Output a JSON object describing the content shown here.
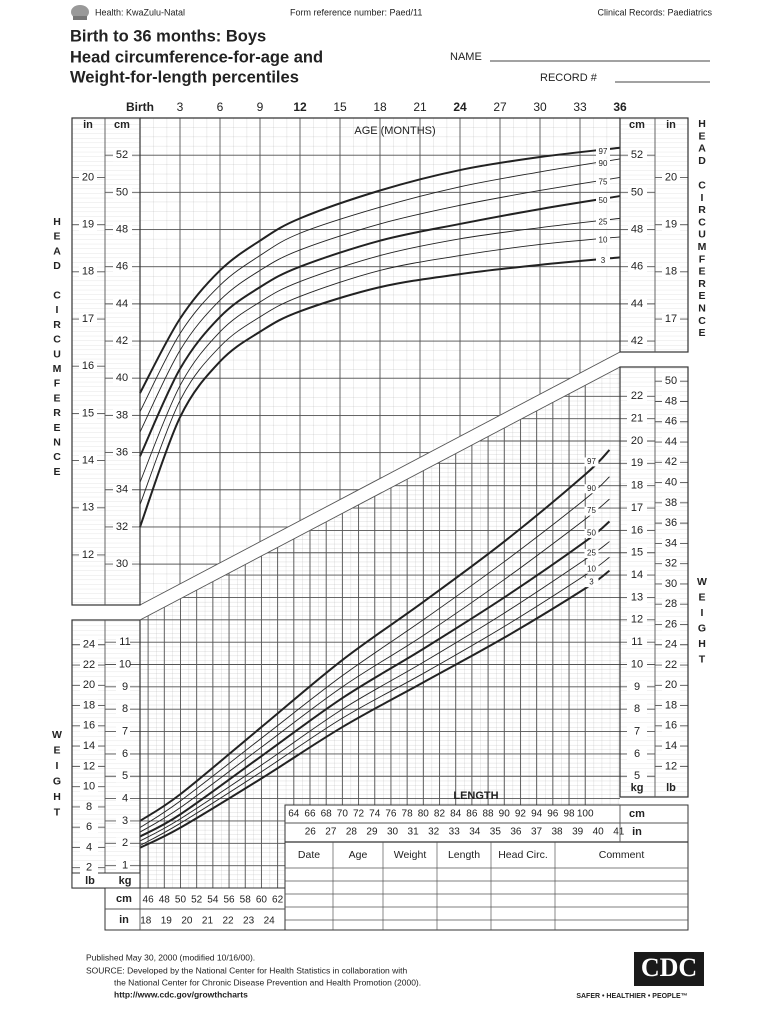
{
  "header": {
    "org": "Health: KwaZulu-Natal",
    "form_ref": "Form reference number: Paed/11",
    "records": "Clinical Records: Paediatrics",
    "title_lines": [
      "Birth to 36 months: Boys",
      "Head circumference-for-age and",
      "Weight-for-length percentiles"
    ],
    "name_label": "NAME",
    "record_label": "RECORD #"
  },
  "chart_data": [
    {
      "type": "line",
      "xlabel": "AGE (MONTHS)",
      "ylabel": "HEAD CIRCUMFERENCE",
      "yunit": "cm",
      "y2unit": "in",
      "x": [
        0,
        3,
        6,
        9,
        12,
        18,
        24,
        30,
        36
      ],
      "xlim": [
        0,
        36
      ],
      "xticks": [
        {
          "value": 0,
          "label": "Birth"
        },
        3,
        6,
        9,
        12,
        15,
        18,
        21,
        24,
        27,
        30,
        33,
        36
      ],
      "ylim": [
        27.8,
        54
      ],
      "yticks": [
        30,
        32,
        34,
        36,
        38,
        40,
        42,
        44,
        46,
        48,
        50,
        52
      ],
      "y2lim": [
        10.94,
        21.26
      ],
      "y2ticks": [
        12,
        13,
        14,
        15,
        16,
        17,
        18,
        19,
        20
      ],
      "grid": true,
      "series": [
        {
          "name": "3",
          "color": "#222",
          "values": [
            32.0,
            37.9,
            40.9,
            42.5,
            43.6,
            44.9,
            45.6,
            46.1,
            46.5
          ]
        },
        {
          "name": "10",
          "color": "#222",
          "values": [
            33.2,
            38.8,
            41.7,
            43.3,
            44.4,
            45.8,
            46.6,
            47.2,
            47.6
          ]
        },
        {
          "name": "25",
          "color": "#222",
          "values": [
            34.4,
            39.6,
            42.5,
            44.1,
            45.2,
            46.6,
            47.5,
            48.1,
            48.6
          ]
        },
        {
          "name": "50",
          "color": "#222",
          "values": [
            35.8,
            40.5,
            43.3,
            44.9,
            46.0,
            47.4,
            48.3,
            49.1,
            49.8
          ]
        },
        {
          "name": "75",
          "color": "#222",
          "values": [
            37.1,
            41.5,
            44.2,
            45.8,
            46.9,
            48.3,
            49.3,
            50.1,
            50.8
          ]
        },
        {
          "name": "90",
          "color": "#222",
          "values": [
            38.2,
            42.4,
            45.0,
            46.6,
            47.8,
            49.2,
            50.3,
            51.1,
            51.8
          ]
        },
        {
          "name": "97",
          "color": "#222",
          "values": [
            39.2,
            43.2,
            45.8,
            47.4,
            48.6,
            50.1,
            51.2,
            51.9,
            52.4
          ]
        }
      ]
    },
    {
      "type": "line",
      "xlabel": "LENGTH",
      "ylabel": "WEIGHT",
      "xunit": "cm",
      "x2unit": "in",
      "yunit": "kg",
      "y2unit": "lb",
      "x": [
        45,
        50,
        60,
        70,
        80,
        90,
        100,
        103
      ],
      "xlim": [
        45,
        104.3
      ],
      "xticks": [
        46,
        48,
        50,
        52,
        54,
        56,
        58,
        60,
        62,
        64,
        66,
        68,
        70,
        72,
        74,
        76,
        78,
        80,
        82,
        84,
        86,
        88,
        90,
        92,
        94,
        96,
        98,
        100
      ],
      "x2lim": [
        17.72,
        41.06
      ],
      "x2ticks": [
        18,
        19,
        20,
        21,
        22,
        23,
        24,
        26,
        27,
        28,
        29,
        30,
        31,
        32,
        33,
        34,
        35,
        36,
        37,
        38,
        39,
        40,
        41
      ],
      "ylim": [
        0,
        23.4
      ],
      "yticks": [
        1,
        2,
        3,
        4,
        5,
        6,
        7,
        8,
        9,
        10,
        11,
        12,
        13,
        14,
        15,
        16,
        17,
        18,
        19,
        20,
        21,
        22
      ],
      "y2lim": [
        0,
        51.6
      ],
      "y2ticks": [
        2,
        4,
        6,
        8,
        10,
        12,
        14,
        16,
        18,
        20,
        22,
        24,
        26,
        28,
        30,
        32,
        34,
        36,
        38,
        40,
        42,
        44,
        46,
        48,
        50
      ],
      "grid": true,
      "series": [
        {
          "name": "3",
          "color": "#222",
          "values": [
            1.8,
            2.7,
            4.9,
            7.2,
            9.2,
            11.2,
            13.4,
            14.2
          ]
        },
        {
          "name": "10",
          "color": "#222",
          "values": [
            1.9,
            2.9,
            5.2,
            7.6,
            9.6,
            11.7,
            14.0,
            14.8
          ]
        },
        {
          "name": "25",
          "color": "#222",
          "values": [
            2.1,
            3.1,
            5.5,
            8.0,
            10.1,
            12.3,
            14.7,
            15.5
          ]
        },
        {
          "name": "50",
          "color": "#222",
          "values": [
            2.3,
            3.3,
            5.9,
            8.5,
            10.7,
            13.0,
            15.5,
            16.4
          ]
        },
        {
          "name": "75",
          "color": "#222",
          "values": [
            2.5,
            3.6,
            6.3,
            9.0,
            11.3,
            13.8,
            16.5,
            17.4
          ]
        },
        {
          "name": "90",
          "color": "#222",
          "values": [
            2.7,
            3.9,
            6.7,
            9.5,
            12.0,
            14.6,
            17.4,
            18.4
          ]
        },
        {
          "name": "97",
          "color": "#222",
          "values": [
            3.0,
            4.2,
            7.2,
            10.2,
            12.8,
            15.5,
            18.5,
            19.6
          ]
        }
      ]
    }
  ],
  "table": {
    "columns": [
      "Date",
      "Age",
      "Weight",
      "Length",
      "Head Circ.",
      "Comment"
    ]
  },
  "footer": {
    "published": "Published May 30, 2000 (modified 10/16/00).",
    "source": "SOURCE: Developed by the National Center for Health Statistics in collaboration with",
    "source2": "the National Center for Chronic Disease Prevention and Health Promotion (2000).",
    "url": "http://www.cdc.gov/growthcharts",
    "logo": "CDC",
    "tagline": "SAFER • HEALTHIER • PEOPLE™"
  }
}
